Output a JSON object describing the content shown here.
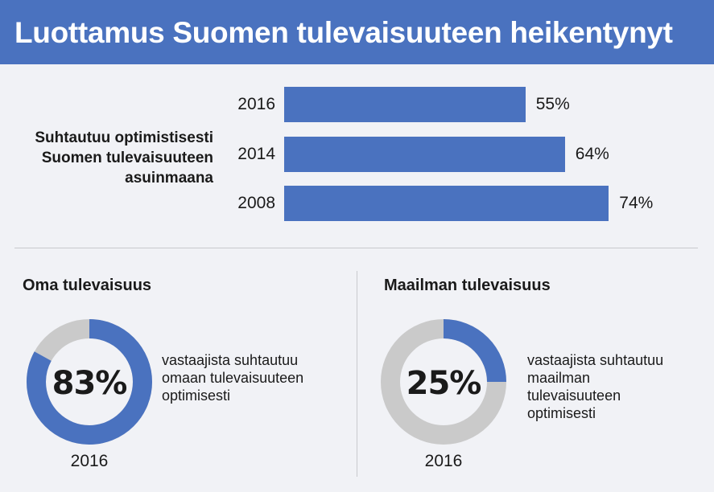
{
  "header": {
    "title": "Luottamus Suomen tulevaisuuteen heikentynyt"
  },
  "colors": {
    "accent": "#4a72bf",
    "ring_gray": "#cacaca",
    "background": "#f1f2f6"
  },
  "bar_section": {
    "label_lines": [
      "Suhtautuu optimistisesti",
      "Suomen tulevaisuuteen",
      "asuinmaana"
    ]
  },
  "left_panel": {
    "title": "Oma tulevaisuus",
    "percent_label": "83%",
    "description_lines": [
      "vastaajista suhtautuu",
      "omaan tulevaisuuteen",
      "optimisesti"
    ],
    "year": "2016"
  },
  "right_panel": {
    "title": "Maailman tulevaisuus",
    "percent_label": "25%",
    "description_lines": [
      "vastaajista suhtautuu",
      "maailman",
      "tulevaisuuteen",
      "optimisesti"
    ],
    "year": "2016"
  },
  "chart_data": [
    {
      "type": "bar",
      "orientation": "horizontal",
      "categories": [
        "2016",
        "2014",
        "2008"
      ],
      "values": [
        55,
        64,
        74
      ],
      "value_labels": [
        "55%",
        "64%",
        "74%"
      ],
      "unit": "%"
    },
    {
      "type": "pie",
      "style": "donut",
      "values": [
        83,
        17
      ],
      "center_label": "83%",
      "year": "2016"
    },
    {
      "type": "pie",
      "style": "donut",
      "values": [
        25,
        75
      ],
      "center_label": "25%",
      "year": "2016"
    }
  ]
}
